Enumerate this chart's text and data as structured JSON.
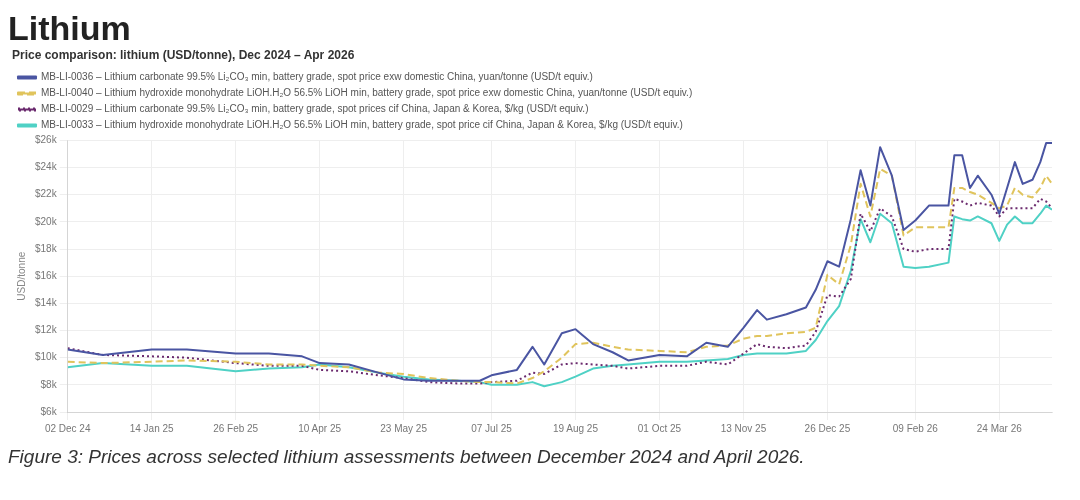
{
  "chart_data": {
    "type": "line",
    "title": "Lithium",
    "subtitle": "Price comparison: lithium (USD/tonne), Dec 2024 – Apr 2026",
    "ylabel": "USD/tonne",
    "annotations": [
      "Figure 3: Prices across selected lithium assessments between December 2024 and April 2026."
    ],
    "x": [
      "2024-12-02",
      "2024-12-20",
      "2025-01-14",
      "2025-02-01",
      "2025-02-26",
      "2025-03-15",
      "2025-04-01",
      "2025-04-10",
      "2025-04-25",
      "2025-05-10",
      "2025-05-23",
      "2025-06-05",
      "2025-06-20",
      "2025-07-01",
      "2025-07-07",
      "2025-07-20",
      "2025-07-28",
      "2025-08-03",
      "2025-08-12",
      "2025-08-19",
      "2025-08-28",
      "2025-09-07",
      "2025-09-15",
      "2025-10-01",
      "2025-10-15",
      "2025-10-25",
      "2025-11-05",
      "2025-11-13",
      "2025-11-20",
      "2025-11-25",
      "2025-12-05",
      "2025-12-15",
      "2025-12-20",
      "2025-12-26",
      "2026-01-01",
      "2026-01-07",
      "2026-01-12",
      "2026-01-17",
      "2026-01-22",
      "2026-01-28",
      "2026-02-03",
      "2026-02-09",
      "2026-02-16",
      "2026-02-26",
      "2026-03-01",
      "2026-03-05",
      "2026-03-09",
      "2026-03-13",
      "2026-03-20",
      "2026-03-24",
      "2026-03-28",
      "2026-04-01",
      "2026-04-05",
      "2026-04-10",
      "2026-04-14",
      "2026-04-17",
      "2026-04-20"
    ],
    "series": [
      {
        "name": "MB-LI-0036 – Lithium carbonate 99.5% Li₂CO₃ min, battery grade, spot price exw domestic China, yuan/tonne (USD/t equiv.)",
        "color": "#4a55a2",
        "line_style": "solid",
        "values": [
          10.6,
          10.2,
          10.6,
          10.6,
          10.3,
          10.3,
          10.1,
          9.6,
          9.5,
          8.9,
          8.4,
          8.3,
          8.3,
          8.3,
          8.7,
          9.1,
          10.8,
          9.5,
          11.8,
          12.1,
          11.0,
          10.4,
          9.8,
          10.2,
          10.1,
          11.1,
          10.8,
          12.2,
          13.5,
          12.8,
          13.2,
          13.7,
          15.0,
          17.1,
          16.7,
          20.2,
          23.8,
          21.2,
          25.5,
          23.4,
          19.4,
          20.1,
          21.2,
          21.2,
          24.9,
          24.9,
          22.5,
          23.4,
          22.0,
          20.6,
          22.5,
          24.4,
          22.8,
          23.1,
          24.4,
          25.8,
          25.8
        ]
      },
      {
        "name": "MB-LI-0040 – Lithium hydroxide monohydrate LiOH.H₂O 56.5% LiOH min, battery grade, spot price exw domestic China, yuan/tonne (USD/t equiv.)",
        "color": "#e0c45c",
        "line_style": "dashed",
        "values": [
          9.7,
          9.6,
          9.7,
          9.8,
          9.7,
          9.5,
          9.5,
          9.4,
          9.3,
          8.9,
          8.8,
          8.5,
          8.3,
          8.2,
          8.2,
          8.1,
          8.5,
          9.0,
          10.0,
          11.0,
          11.1,
          10.8,
          10.6,
          10.5,
          10.4,
          10.8,
          10.9,
          11.4,
          11.6,
          11.6,
          11.8,
          11.9,
          12.2,
          16.1,
          15.4,
          18.3,
          22.8,
          20.4,
          23.9,
          23.4,
          19.0,
          19.6,
          19.6,
          19.6,
          22.5,
          22.5,
          22.2,
          22.0,
          21.4,
          21.0,
          21.2,
          22.5,
          22.0,
          21.8,
          22.5,
          23.4,
          22.8
        ]
      },
      {
        "name": "MB-LI-0029 – Lithium carbonate 99.5% Li₂CO₃ min, battery grade, spot prices cif China, Japan & Korea, $/kg (USD/t equiv.)",
        "color": "#6b2a6e",
        "line_style": "dotted",
        "values": [
          10.7,
          10.2,
          10.1,
          10.0,
          9.6,
          9.4,
          9.4,
          9.1,
          9.0,
          8.7,
          8.5,
          8.2,
          8.1,
          8.1,
          8.2,
          8.3,
          8.9,
          8.8,
          9.5,
          9.6,
          9.5,
          9.4,
          9.2,
          9.4,
          9.4,
          9.7,
          9.5,
          10.3,
          11.0,
          10.8,
          10.7,
          10.9,
          11.9,
          14.6,
          14.5,
          15.8,
          20.6,
          19.3,
          21.0,
          20.4,
          18.0,
          17.8,
          18.0,
          18.0,
          21.7,
          21.5,
          21.2,
          21.4,
          21.2,
          20.4,
          21.0,
          21.0,
          21.0,
          21.0,
          21.7,
          21.5,
          21.0
        ]
      },
      {
        "name": "MB-LI-0033 – Lithium hydroxide monohydrate LiOH.H₂O 56.5% LiOH min, battery grade, spot price cif China, Japan & Korea, $/kg (USD/t equiv.)",
        "color": "#4fd1c5",
        "line_style": "solid",
        "values": [
          9.3,
          9.6,
          9.4,
          9.4,
          9.0,
          9.2,
          9.3,
          9.5,
          9.3,
          8.9,
          8.6,
          8.4,
          8.3,
          8.2,
          8.0,
          8.0,
          8.2,
          7.9,
          8.2,
          8.6,
          9.2,
          9.4,
          9.5,
          9.7,
          9.7,
          9.8,
          9.9,
          10.2,
          10.3,
          10.3,
          10.3,
          10.5,
          11.3,
          12.7,
          13.8,
          16.4,
          20.2,
          18.5,
          20.6,
          19.9,
          16.7,
          16.6,
          16.7,
          17.0,
          20.4,
          20.2,
          20.1,
          20.4,
          19.9,
          18.6,
          19.8,
          20.4,
          19.9,
          19.9,
          20.6,
          21.2,
          20.9
        ]
      }
    ],
    "xlim": [
      "2024-12-02",
      "2026-04-20"
    ],
    "xticks": [
      {
        "value": "2024-12-02",
        "label": "02 Dec 24"
      },
      {
        "value": "2025-01-14",
        "label": "14 Jan 25"
      },
      {
        "value": "2025-02-26",
        "label": "26 Feb 25"
      },
      {
        "value": "2025-04-10",
        "label": "10 Apr 25"
      },
      {
        "value": "2025-05-23",
        "label": "23 May 25"
      },
      {
        "value": "2025-07-07",
        "label": "07 Jul 25"
      },
      {
        "value": "2025-08-19",
        "label": "19 Aug 25"
      },
      {
        "value": "2025-10-01",
        "label": "01 Oct 25"
      },
      {
        "value": "2025-11-13",
        "label": "13 Nov 25"
      },
      {
        "value": "2025-12-26",
        "label": "26 Dec 25"
      },
      {
        "value": "2026-02-09",
        "label": "09 Feb 26"
      },
      {
        "value": "2026-03-24",
        "label": "24 Mar 26"
      }
    ],
    "ylim": [
      6,
      26
    ],
    "yticks": [
      {
        "value": 6,
        "label": "$6k"
      },
      {
        "value": 8,
        "label": "$8k"
      },
      {
        "value": 10,
        "label": "$10k"
      },
      {
        "value": 12,
        "label": "$12k"
      },
      {
        "value": 14,
        "label": "$14k"
      },
      {
        "value": 16,
        "label": "$16k"
      },
      {
        "value": 18,
        "label": "$18k"
      },
      {
        "value": 20,
        "label": "$20k"
      },
      {
        "value": 22,
        "label": "$22k"
      },
      {
        "value": 24,
        "label": "$24k"
      },
      {
        "value": 26,
        "label": "$26k"
      }
    ],
    "grid": true,
    "legend": "top left",
    "marker": "none"
  }
}
